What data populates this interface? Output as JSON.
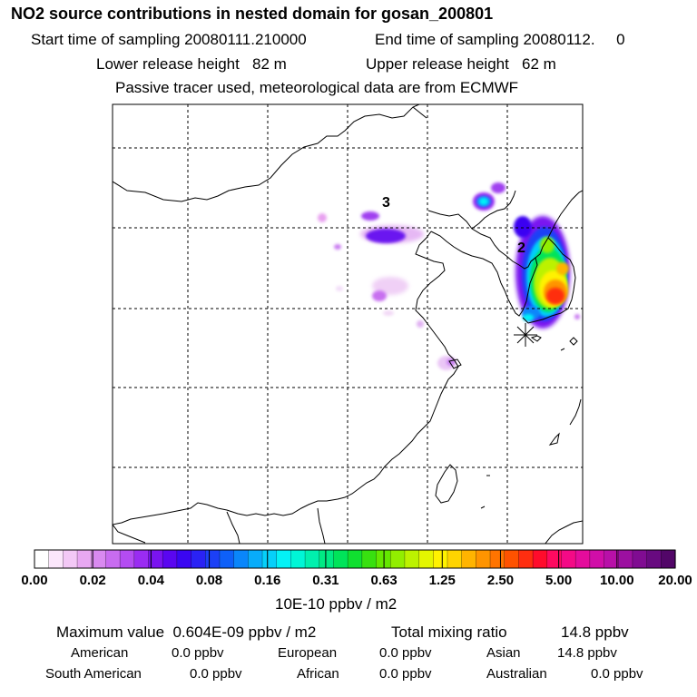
{
  "header": {
    "title": "NO2 source contributions in nested domain for gosan_200801",
    "start_label": "Start time of sampling 20080111.210000",
    "end_label": "End time of sampling 20080112.     0",
    "lower_release": "Lower release height   82 m",
    "upper_release": "Upper release height   62 m",
    "tracer_note": "Passive tracer used, meteorological data are from ECMWF"
  },
  "map": {
    "region_labels": [
      "3",
      "2"
    ],
    "receptor_marker": "gosan-receptor"
  },
  "colorbar": {
    "unit": "10E-10 ppbv / m2",
    "tick_labels": [
      "0.00",
      "0.02",
      "0.04",
      "0.08",
      "0.16",
      "0.31",
      "0.63",
      "1.25",
      "2.50",
      "5.00",
      "10.00",
      "20.00"
    ],
    "colors": [
      "#ffffff",
      "#fbe6fb",
      "#f3c8f6",
      "#e8a8f2",
      "#d98af0",
      "#c86cf0",
      "#b44cf2",
      "#9a2cf2",
      "#7a14f0",
      "#5a06f0",
      "#3a06f2",
      "#2a22f4",
      "#1c40f6",
      "#0e60f8",
      "#0a86fa",
      "#08acfa",
      "#06d0fa",
      "#04f2f6",
      "#00f6d6",
      "#00f0ae",
      "#00ea84",
      "#00e45a",
      "#10e030",
      "#38e010",
      "#64e800",
      "#92ee00",
      "#bcf200",
      "#e4f600",
      "#fff200",
      "#ffd400",
      "#ffb400",
      "#ff9400",
      "#ff7400",
      "#ff5200",
      "#ff2e10",
      "#ff0c2c",
      "#ff0a60",
      "#f40a86",
      "#e40c9c",
      "#d00ea8",
      "#b810a8",
      "#9c10a0",
      "#800c92",
      "#680a80",
      "#520668"
    ]
  },
  "stats": {
    "max_label": "Maximum value  0.604E-09 ppbv / m2",
    "total_label": "Total mixing ratio",
    "total_value": "14.8 ppbv",
    "regions": [
      {
        "name": "American",
        "value": "0.0 ppbv"
      },
      {
        "name": "European",
        "value": "0.0 ppbv"
      },
      {
        "name": "Asian",
        "value": "14.8 ppbv"
      },
      {
        "name": "South American",
        "value": "0.0 ppbv"
      },
      {
        "name": "African",
        "value": "0.0 ppbv"
      },
      {
        "name": "Australian",
        "value": "0.0 ppbv"
      }
    ]
  }
}
